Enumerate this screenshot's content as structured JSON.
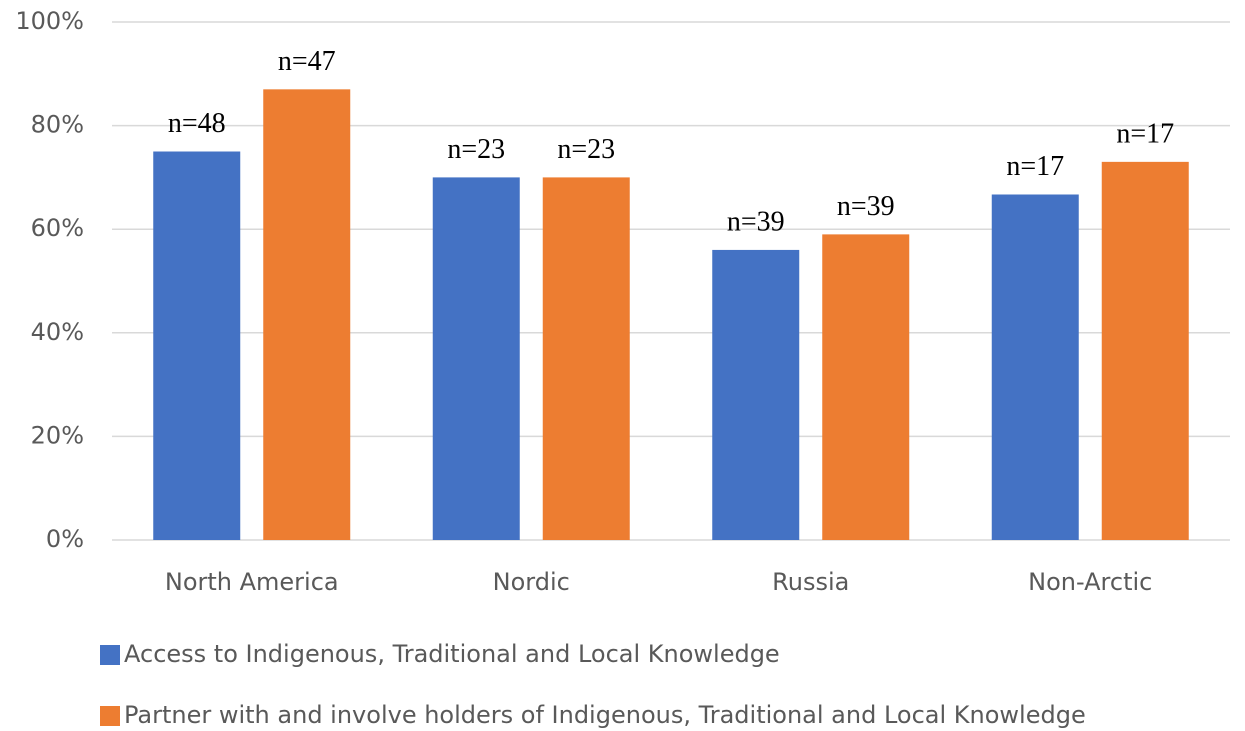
{
  "chart_data": {
    "type": "bar",
    "categories": [
      "North America",
      "Nordic",
      "Russia",
      "Non-Arctic"
    ],
    "series": [
      {
        "name": "Access to Indigenous, Traditional and Local Knowledge",
        "color": "#4472c4",
        "values": [
          75,
          70,
          56,
          66.7
        ],
        "n_labels": [
          "n=48",
          "n=23",
          "n=39",
          "n=17"
        ]
      },
      {
        "name": "Partner with and involve holders of Indigenous, Traditional and Local Knowledge",
        "color": "#ed7d31",
        "values": [
          87,
          70,
          59,
          73
        ],
        "n_labels": [
          "n=47",
          "n=23",
          "n=39",
          "n=17"
        ]
      }
    ],
    "ylim": [
      0,
      100
    ],
    "yticks": [
      {
        "value": 0,
        "label": "0%"
      },
      {
        "value": 20,
        "label": "20%"
      },
      {
        "value": 40,
        "label": "40%"
      },
      {
        "value": 60,
        "label": "60%"
      },
      {
        "value": 80,
        "label": "80%"
      },
      {
        "value": 100,
        "label": "100%"
      }
    ],
    "grid": true,
    "legend": "bottom"
  }
}
